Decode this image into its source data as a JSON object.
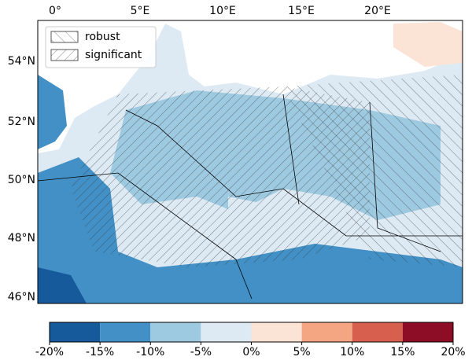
{
  "map": {
    "lon_labels": [
      "0°",
      "5°E",
      "10°E",
      "15°E",
      "20°E"
    ],
    "lat_labels": [
      "54°N",
      "52°N",
      "50°N",
      "48°N",
      "46°N"
    ],
    "legend": [
      "robust",
      "significant"
    ],
    "colorbar": {
      "lim": [
        -20,
        20
      ],
      "ticks": [
        {
          "value": -20,
          "label": "-20%"
        },
        {
          "value": -15,
          "label": "-15%"
        },
        {
          "value": -10,
          "label": "-10%"
        },
        {
          "value": -5,
          "label": "-5%"
        },
        {
          "value": 0,
          "label": "0%"
        },
        {
          "value": 5,
          "label": "5%"
        },
        {
          "value": 10,
          "label": "10%"
        },
        {
          "value": 15,
          "label": "15%"
        },
        {
          "value": 20,
          "label": "20%"
        }
      ],
      "colors": [
        "#175a9b",
        "#4290c5",
        "#9ecae1",
        "#dde9f3",
        "#fbe3d6",
        "#f4a582",
        "#d6604d",
        "#8c0d25"
      ]
    }
  }
}
